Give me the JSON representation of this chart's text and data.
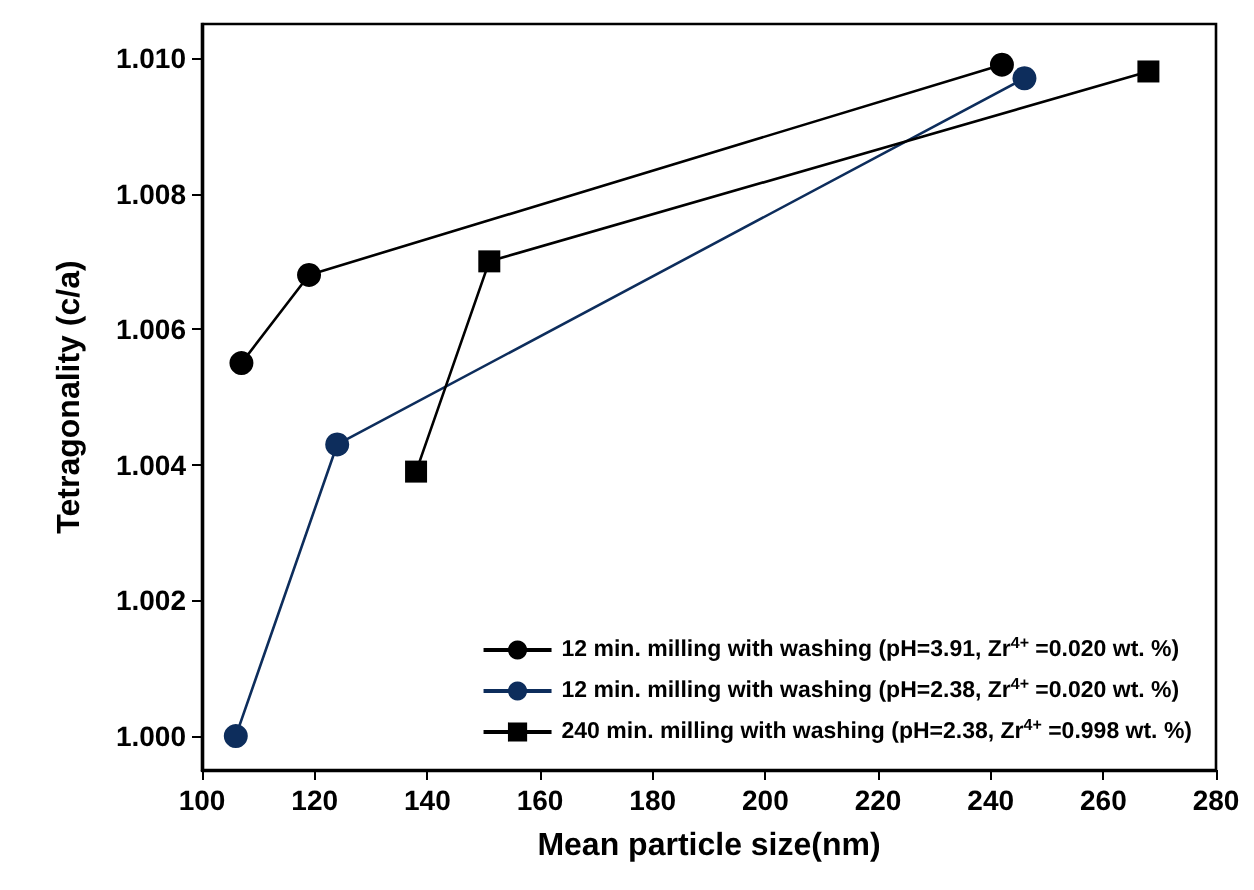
{
  "chart_data": {
    "type": "line",
    "xlabel": "Mean particle size(nm)",
    "ylabel": "Tetragonality (c/a)",
    "xlim": [
      100,
      280
    ],
    "xticks": [
      100,
      120,
      140,
      160,
      180,
      200,
      220,
      240,
      260,
      280
    ],
    "ylim": [
      0.9995,
      1.0105
    ],
    "yticks": [
      {
        "value": 1.0,
        "label": "1.000"
      },
      {
        "value": 1.002,
        "label": "1.002"
      },
      {
        "value": 1.004,
        "label": "1.004"
      },
      {
        "value": 1.006,
        "label": "1.006"
      },
      {
        "value": 1.008,
        "label": "1.008"
      },
      {
        "value": 1.01,
        "label": "1.010"
      }
    ],
    "grid": false,
    "legend": "bottom right",
    "line_style": "solid",
    "series": [
      {
        "name": "12 min. milling with washing (pH=3.91, Zr$^{4+}$ =0.020 wt. %)",
        "color": "#000000",
        "marker": "circle",
        "x": [
          107,
          119,
          242
        ],
        "values": [
          1.0055,
          1.0068,
          1.0099
        ]
      },
      {
        "name": "12 min. milling with washing (pH=2.38, Zr$^{4+}$ =0.020 wt. %)",
        "color": "#0d2d5c",
        "marker": "circle",
        "x": [
          106,
          124,
          246
        ],
        "values": [
          1.0,
          1.0043,
          1.0097
        ]
      },
      {
        "name": "240 min. milling with washing (pH=2.38, Zr$^{4+}$ =0.998 wt. %)",
        "color": "#000000",
        "marker": "square",
        "x": [
          138,
          151,
          268
        ],
        "values": [
          1.0039,
          1.007,
          1.0098
        ]
      }
    ]
  }
}
